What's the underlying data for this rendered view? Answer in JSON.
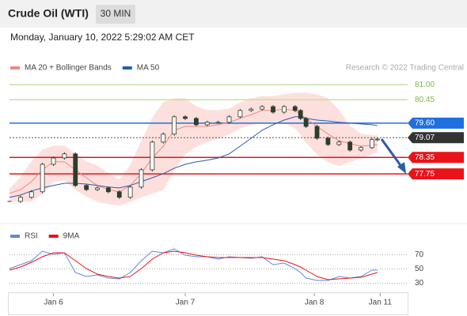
{
  "header": {
    "title": "Crude Oil (WTI)",
    "interval": "30 MIN",
    "timestamp": "Monday, January 10, 2022 5:29:02 AM CET",
    "watermark": "Research © 2022 Trading Central"
  },
  "chart_data": [
    {
      "type": "candlestick",
      "candle_color": "#2c3e2d",
      "x": [
        0,
        4,
        8,
        12,
        16,
        20,
        24,
        28,
        32,
        36,
        40,
        44,
        48,
        52,
        56,
        60,
        64,
        68,
        72,
        76,
        80,
        84,
        88,
        92,
        96,
        100,
        104,
        106,
        108,
        112,
        116,
        120,
        124,
        128,
        132,
        134
      ],
      "close": [
        76.75,
        76.9,
        77.1,
        78.1,
        78.33,
        78.48,
        77.33,
        77.18,
        77.24,
        77.1,
        76.9,
        77.27,
        77.9,
        78.91,
        79.2,
        79.83,
        79.77,
        79.54,
        79.63,
        79.63,
        79.83,
        80.06,
        80.11,
        80.2,
        80.0,
        80.2,
        80.06,
        79.77,
        79.48,
        79.05,
        78.82,
        78.91,
        78.62,
        78.71,
        79.0,
        79.02
      ],
      "series": [
        {
          "name": "MA 20 + Bollinger Bands",
          "color": "#f08a80",
          "band_color": "#fde0dd",
          "values": [
            77.04,
            77.18,
            77.47,
            77.9,
            78.19,
            78.19,
            77.9,
            77.61,
            77.33,
            77.18,
            77.1,
            77.33,
            77.76,
            78.33,
            78.76,
            79.34,
            79.48,
            79.48,
            79.48,
            79.54,
            79.63,
            79.77,
            79.91,
            80.06,
            80.06,
            80.11,
            80.06,
            79.91,
            79.77,
            79.48,
            79.2,
            78.96,
            78.85,
            78.76,
            78.79,
            78.82
          ],
          "upper": [
            77.18,
            77.61,
            78.19,
            78.62,
            78.76,
            78.76,
            78.48,
            78.19,
            78.05,
            77.76,
            77.53,
            78.05,
            78.91,
            79.77,
            80.34,
            80.49,
            80.49,
            80.2,
            80.06,
            80.06,
            80.11,
            80.34,
            80.49,
            80.57,
            80.57,
            80.63,
            80.69,
            80.69,
            80.69,
            80.63,
            80.49,
            80.06,
            79.48,
            79.2,
            79.14,
            79.14
          ],
          "lower": [
            76.75,
            76.75,
            76.75,
            77.04,
            77.47,
            77.53,
            77.18,
            76.95,
            76.75,
            76.67,
            76.61,
            76.75,
            76.9,
            77.04,
            77.18,
            77.9,
            78.48,
            78.76,
            78.91,
            79.05,
            79.2,
            79.42,
            79.54,
            79.63,
            79.63,
            79.63,
            79.42,
            79.2,
            78.91,
            78.48,
            78.19,
            78.05,
            78.19,
            78.33,
            78.48,
            78.53
          ]
        },
        {
          "name": "MA 50",
          "color": "#2a5caa",
          "values": [
            76.9,
            76.98,
            77.13,
            77.24,
            77.33,
            77.41,
            77.41,
            77.38,
            77.33,
            77.27,
            77.24,
            77.33,
            77.47,
            77.61,
            77.76,
            77.96,
            78.1,
            78.19,
            78.25,
            78.33,
            78.48,
            78.76,
            79.05,
            79.34,
            79.54,
            79.71,
            79.83,
            79.83,
            79.77,
            79.71,
            79.68,
            79.63,
            79.6,
            79.57,
            79.54,
            79.51
          ]
        }
      ],
      "levels": [
        {
          "value": 81.0,
          "label": "81.00",
          "color": "#7ab648",
          "line_color": "#c5e0a5",
          "box": false,
          "style": "solid"
        },
        {
          "value": 80.45,
          "label": "80.45",
          "color": "#7ab648",
          "line_color": "#c5e0a5",
          "box": false,
          "style": "solid"
        },
        {
          "value": 79.6,
          "label": "79.60",
          "color": "#1f6fe0",
          "line_color": "#1f6fe0",
          "box": true,
          "style": "solid"
        },
        {
          "value": 79.07,
          "label": "79.07",
          "color": "#333333",
          "line_color": "#555555",
          "box": true,
          "style": "dotted"
        },
        {
          "value": 78.35,
          "label": "78.35",
          "color": "#e8141a",
          "line_color": "#e8141a",
          "box": true,
          "style": "solid"
        },
        {
          "value": 77.75,
          "label": "77.75",
          "color": "#e8141a",
          "line_color": "#e8141a",
          "box": true,
          "style": "solid"
        }
      ],
      "xlim": [
        0,
        145
      ],
      "ylim": [
        76.0,
        81.35
      ]
    },
    {
      "type": "line",
      "x": [
        0,
        4,
        8,
        12,
        16,
        20,
        24,
        28,
        32,
        36,
        40,
        44,
        48,
        52,
        56,
        60,
        64,
        68,
        72,
        76,
        80,
        84,
        88,
        92,
        96,
        100,
        104,
        106,
        108,
        112,
        116,
        120,
        124,
        128,
        132,
        134
      ],
      "series": [
        {
          "name": "RSI",
          "color": "#5b8bd9",
          "values": [
            50.6,
            56.1,
            61.7,
            75.0,
            70.6,
            72.8,
            45.0,
            39.4,
            41.7,
            37.2,
            36.1,
            45.0,
            61.7,
            75.0,
            72.8,
            78.3,
            69.4,
            67.2,
            67.2,
            63.9,
            67.2,
            66.1,
            65.0,
            67.2,
            56.1,
            58.3,
            50.6,
            45.0,
            37.2,
            33.9,
            33.9,
            39.4,
            37.2,
            39.4,
            48.3,
            48.3
          ]
        },
        {
          "name": "9MA",
          "color": "#e8141a",
          "values": [
            48.3,
            52.8,
            59.4,
            67.2,
            72.8,
            72.8,
            61.7,
            50.6,
            42.8,
            39.4,
            37.2,
            39.4,
            50.6,
            63.9,
            72.8,
            75.0,
            72.8,
            69.4,
            67.2,
            66.1,
            66.1,
            66.1,
            66.1,
            66.1,
            63.9,
            61.7,
            56.1,
            52.8,
            48.3,
            39.4,
            35.0,
            36.1,
            37.2,
            38.3,
            42.8,
            45.0
          ]
        }
      ],
      "xlim": [
        0,
        145
      ],
      "ylim": [
        15,
        95
      ],
      "yticks": [
        30,
        50,
        70
      ],
      "xticks": [
        {
          "value": 16,
          "label": "Jan 6"
        },
        {
          "value": 64,
          "label": "Jan 7"
        },
        {
          "value": 111,
          "label": "Jan 8"
        },
        {
          "value": 135,
          "label": "Jan 11"
        }
      ]
    }
  ]
}
